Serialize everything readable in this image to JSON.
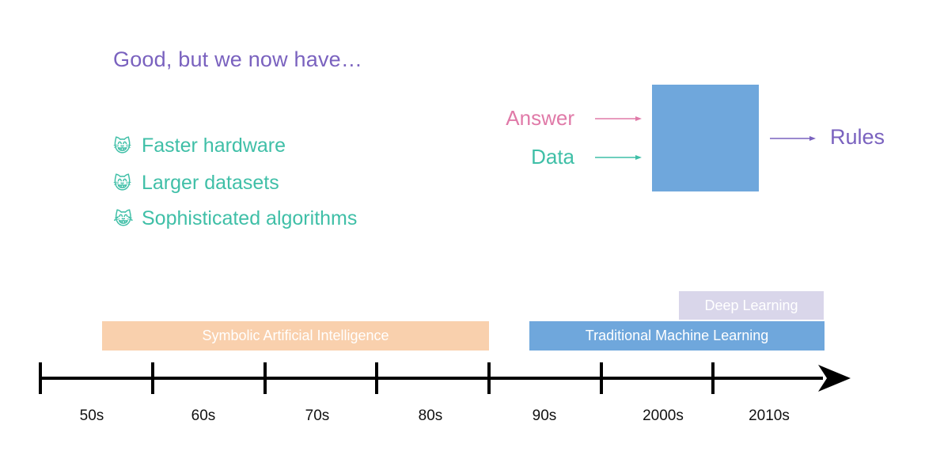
{
  "title": "Good, but we now have…",
  "bullets": [
    {
      "emoji": "😸",
      "text": "Faster hardware"
    },
    {
      "emoji": "😸",
      "text": "Larger datasets"
    },
    {
      "emoji": "😹",
      "text": "Sophisticated algorithms"
    }
  ],
  "flow": {
    "inputs": [
      {
        "label": "Answer",
        "color": "#e07aa8"
      },
      {
        "label": "Data",
        "color": "#3fbfa7"
      }
    ],
    "output": {
      "label": "Rules",
      "color": "#7a62bf"
    },
    "box_color": "#6fa7dc"
  },
  "timeline": {
    "decades": [
      "50s",
      "60s",
      "70s",
      "80s",
      "90s",
      "2000s",
      "2010s"
    ],
    "eras": [
      {
        "label": "Symbolic Artificial Intelligence",
        "color": "#f9d0ad"
      },
      {
        "label": "Traditional Machine Learning",
        "color": "#6fa7dc"
      },
      {
        "label": "Deep Learning",
        "color": "#d9d6ea"
      }
    ]
  }
}
